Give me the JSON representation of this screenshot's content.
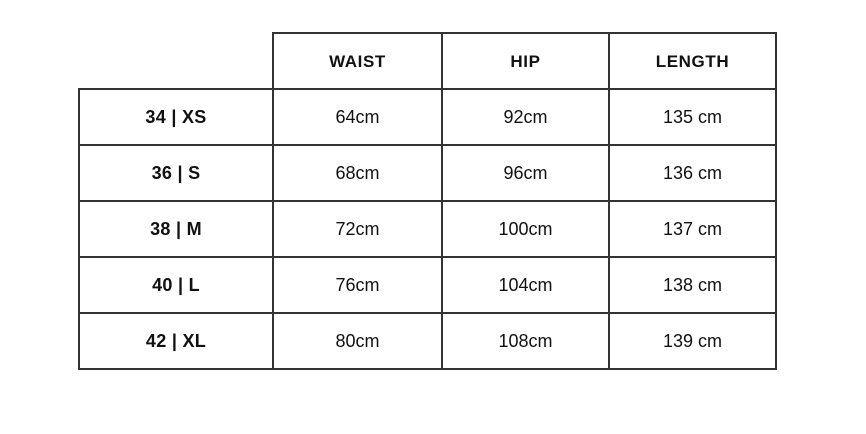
{
  "chart_data": {
    "type": "table",
    "header": [
      "WAIST",
      "HIP",
      "LENGTH"
    ],
    "rows": [
      [
        "34 | XS",
        "64cm",
        "92cm",
        "135 cm"
      ],
      [
        "36 | S",
        "68cm",
        "96cm",
        "136 cm"
      ],
      [
        "38 | M",
        "72cm",
        "100cm",
        "137 cm"
      ],
      [
        "40 | L",
        "76cm",
        "104cm",
        "138 cm"
      ],
      [
        "42 | XL",
        "80cm",
        "108cm",
        "139 cm"
      ]
    ]
  },
  "colors": {
    "background": "#ffffff",
    "border": "#333333",
    "text": "#111111"
  }
}
